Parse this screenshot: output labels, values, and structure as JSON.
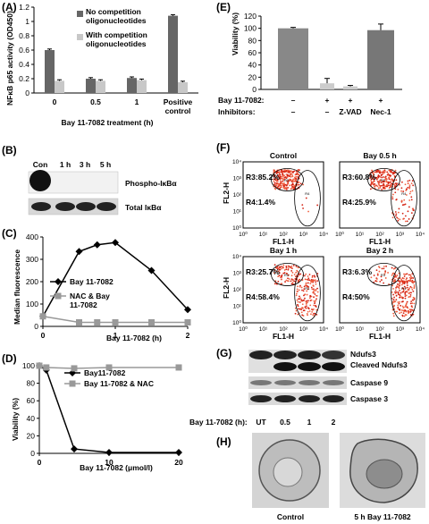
{
  "panels": {
    "A": {
      "label": "(A)",
      "chart_data": {
        "type": "bar",
        "ylabel": "NFκB p65 activity (OD450)",
        "xlabel": "Bay 11-7082 treatment (h)",
        "categories": [
          "0",
          "0.5",
          "1",
          "Positive control"
        ],
        "ylim": [
          0,
          1.2
        ],
        "yticks": [
          "0",
          "0.2",
          "0.4",
          "0.6",
          "0.8",
          "1",
          "1.2"
        ],
        "series": [
          {
            "name": "No competition oligonucleotides",
            "color": "#666666",
            "values": [
              0.6,
              0.2,
              0.21,
              1.08
            ]
          },
          {
            "name": "With competition oligonucleotides",
            "color": "#c8c8c8",
            "values": [
              0.17,
              0.17,
              0.18,
              0.15
            ]
          }
        ]
      }
    },
    "B": {
      "label": "(B)",
      "lanes": [
        "Con",
        "1 h",
        "3 h",
        "5 h"
      ],
      "rows": [
        "Phospho-IκBα",
        "Total IκBα"
      ]
    },
    "C": {
      "label": "(C)",
      "chart_data": {
        "type": "line",
        "ylabel": "Median fluorescence",
        "xlabel": "Bay 11-7082  (h)",
        "xlim": [
          0,
          2
        ],
        "ylim": [
          0,
          400
        ],
        "xticks": [
          "0",
          "1",
          "2"
        ],
        "yticks": [
          "0",
          "100",
          "200",
          "300",
          "400"
        ],
        "series": [
          {
            "name": "Bay 11-7082",
            "color": "#000000",
            "marker": "diamond",
            "x": [
              0,
              0.5,
              0.75,
              1,
              1.5,
              2
            ],
            "y": [
              45,
              335,
              365,
              375,
              250,
              75
            ]
          },
          {
            "name": "NAC  & Bay 11-7082",
            "color": "#999999",
            "marker": "square",
            "x": [
              0,
              0.5,
              0.75,
              1,
              1.5,
              2
            ],
            "y": [
              45,
              18,
              18,
              18,
              18,
              18
            ]
          }
        ]
      }
    },
    "D": {
      "label": "(D)",
      "chart_data": {
        "type": "line",
        "ylabel": "Viability (%)",
        "xlabel": "Bay 11-7082 (μmol/l)",
        "xlim": [
          0,
          20
        ],
        "ylim": [
          0,
          100
        ],
        "xticks": [
          "0",
          "10",
          "20"
        ],
        "yticks": [
          "0",
          "20",
          "40",
          "60",
          "80",
          "100"
        ],
        "series": [
          {
            "name": "Bay11-7082",
            "color": "#000000",
            "marker": "diamond",
            "x": [
              0,
              1,
              5,
              10,
              20
            ],
            "y": [
              100,
              95,
              5,
              1,
              1
            ]
          },
          {
            "name": "Bay 11-7082 & NAC",
            "color": "#999999",
            "marker": "square",
            "x": [
              0,
              1,
              5,
              10,
              20
            ],
            "y": [
              100,
              98,
              97,
              98,
              98
            ]
          }
        ]
      }
    },
    "E": {
      "label": "(E)",
      "chart_data": {
        "type": "bar",
        "ylabel": "Viability (%)",
        "ylim": [
          0,
          120
        ],
        "yticks": [
          "0",
          "20",
          "40",
          "60",
          "80",
          "100",
          "120"
        ],
        "categories": [
          "1",
          "2",
          "3",
          "4"
        ],
        "values": [
          100,
          10,
          5,
          97
        ],
        "colors": [
          "#888888",
          "#cccccc",
          "#cccccc",
          "#777777"
        ]
      },
      "row1_label": "Bay 11-7082:",
      "row1_values": [
        "–",
        "+",
        "+",
        "+"
      ],
      "row2_label": "Inhibitors:",
      "row2_values": [
        "–",
        "–",
        "Z-VAD",
        "Nec-1"
      ]
    },
    "F": {
      "label": "(F)",
      "plots": [
        {
          "title": "Control",
          "r3": "R3:85.2%",
          "r4": "R4:1.4%"
        },
        {
          "title": "Bay 0.5 h",
          "r3": "R3:60.8%",
          "r4": "R4:25.9%"
        },
        {
          "title": "Bay 1 h",
          "r3": "R3:25.7%",
          "r4": "R4:58.4%"
        },
        {
          "title": "Bay 2 h",
          "r3": "R3:6.3%",
          "r4": "R4:50%"
        }
      ],
      "xaxis": "FL1-H",
      "yaxis": "FL2-H",
      "ticks": [
        "10⁰",
        "10¹",
        "10²",
        "10³",
        "10⁴"
      ],
      "gate_r3": "R3",
      "gate_r4": "R4"
    },
    "G": {
      "label": "(G)",
      "rows": [
        "Ndufs3",
        "Cleaved Ndufs3",
        "Caspase 9",
        "Caspase 3"
      ],
      "lanes_label": "Bay 11-7082 (h):",
      "lanes": [
        "UT",
        "0.5",
        "1",
        "2"
      ]
    },
    "H": {
      "label": "(H)",
      "captions": [
        "Control",
        "5 h Bay 11-7082"
      ]
    }
  }
}
